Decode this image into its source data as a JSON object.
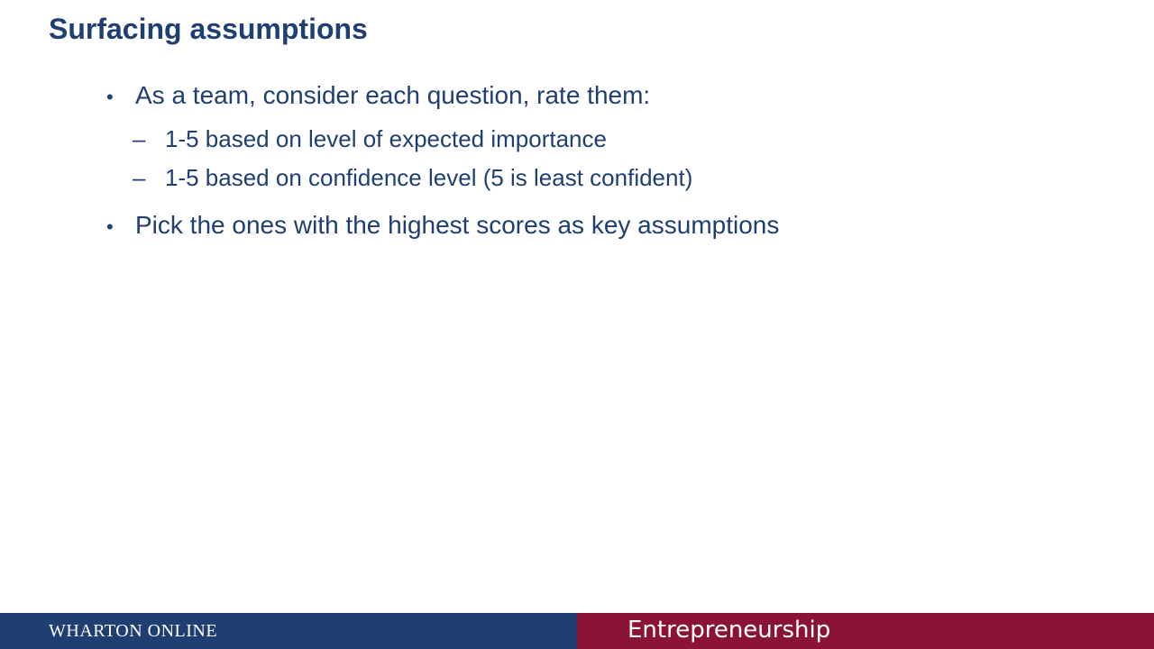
{
  "slide": {
    "title": "Surfacing assumptions",
    "bullets": [
      {
        "marker": "•",
        "text": "As a team, consider each question, rate them:",
        "sub_bullets": [
          {
            "marker": "–",
            "text": "1-5 based on level of expected importance"
          },
          {
            "marker": "–",
            "text": "1-5 based on confidence level (5 is least confident)"
          }
        ]
      },
      {
        "marker": "•",
        "text": "Pick the ones with the highest scores as key assumptions"
      }
    ]
  },
  "footer": {
    "brand": "WHARTON ONLINE",
    "course": "Entrepreneurship",
    "left_color": "#1f3f72",
    "right_color": "#8b1436"
  },
  "colors": {
    "text": "#1f3f72",
    "background": "#ffffff"
  }
}
